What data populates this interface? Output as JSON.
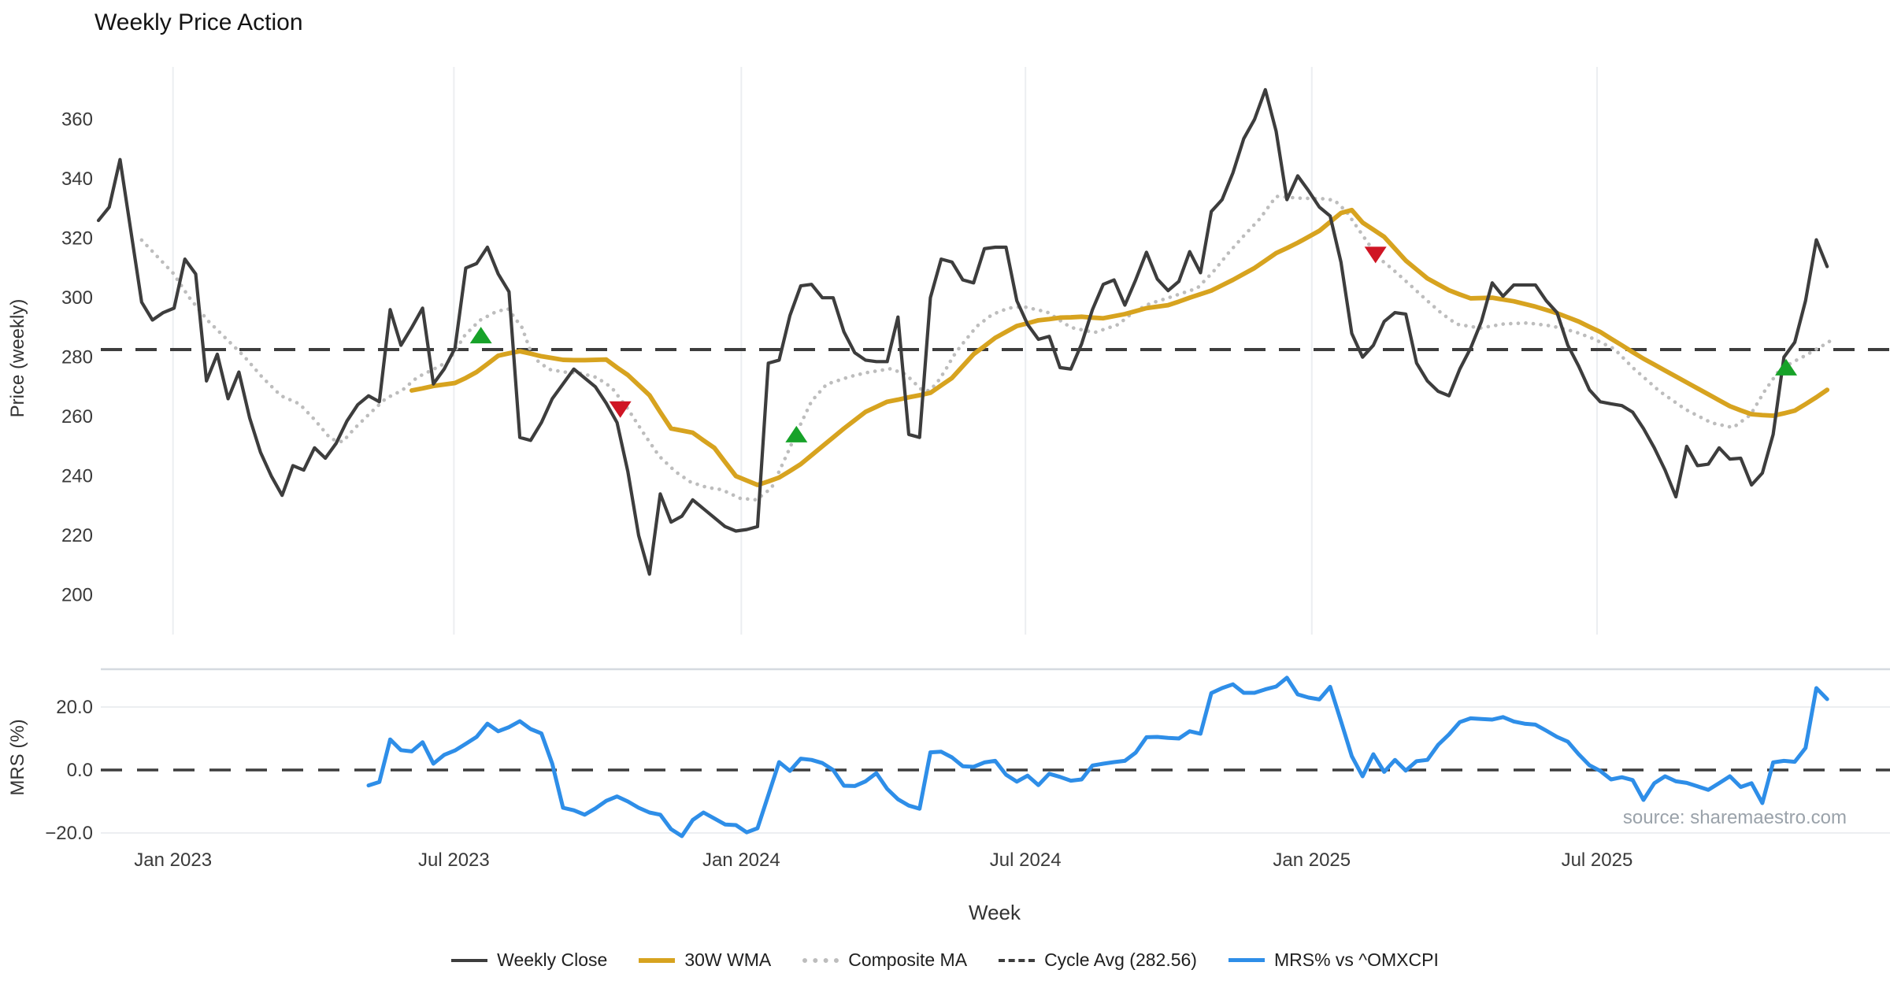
{
  "title": "Weekly Price Action",
  "watermark": "source: sharemaestro.com",
  "colors": {
    "close": "#3d3d3d",
    "wma": "#d7a31f",
    "composite": "#bdbdbd",
    "cycle_dash": "#3d3d3d",
    "mrs": "#2e8ee8",
    "buy": "#17a229",
    "sell": "#cf1524",
    "gridline": "#eceef1",
    "panel_border": "#d5dae0"
  },
  "legend": [
    {
      "label": "Weekly Close",
      "swatch": "sw-solid-dark"
    },
    {
      "label": "30W WMA",
      "swatch": "sw-solid-gold"
    },
    {
      "label": "Composite MA",
      "swatch": "sw-dotted"
    },
    {
      "label": "Cycle Avg (282.56)",
      "swatch": "sw-dashed"
    },
    {
      "label": "MRS% vs ^OMXCPI",
      "swatch": "sw-solid-blue"
    }
  ],
  "chart_data": {
    "type": "line",
    "x": {
      "label": "Week",
      "tick_labels": [
        "Jan 2023",
        "Jul 2023",
        "Jan 2024",
        "Jul 2024",
        "Jan 2025",
        "Jul 2025"
      ],
      "tick_weeks": [
        6.9,
        32.9,
        59.5,
        85.8,
        112.3,
        138.7
      ]
    },
    "price_panel": {
      "ylabel": "Price (weekly)",
      "yticks": [
        200,
        220,
        240,
        260,
        280,
        300,
        320,
        340,
        360
      ],
      "ylim": [
        195,
        380
      ],
      "cycle_avg": 282.56,
      "grid": "vertical-only"
    },
    "mrs_panel": {
      "ylabel": "MRS (%)",
      "yticks": [
        -20.0,
        0.0,
        20.0
      ],
      "ytick_labels": [
        "−20.0",
        "0.0",
        "20.0"
      ],
      "zero_line": 0.0,
      "grid": "horizontal-only"
    },
    "weekly_close": {
      "name": "Weekly Close",
      "start_week": 0,
      "values": [
        326,
        330.5,
        346.5,
        322.5,
        298.5,
        292.5,
        295,
        296.5,
        313,
        308,
        272,
        281,
        266,
        275,
        259.5,
        248,
        240,
        233.5,
        243.5,
        242,
        249.5,
        246,
        251,
        258.5,
        264,
        267,
        265,
        296,
        284,
        290,
        296.5,
        271,
        276,
        283,
        310,
        311.5,
        317,
        308,
        302,
        253,
        252,
        258,
        266,
        271,
        276,
        273,
        270,
        264.5,
        258,
        241.5,
        220,
        207,
        234,
        224.5,
        226.5,
        232,
        229,
        226,
        223,
        221.5,
        222,
        223,
        278,
        279,
        294,
        304,
        304.5,
        300,
        300,
        288.5,
        281.5,
        279,
        278.5,
        278.5,
        293.5,
        254,
        253,
        300,
        313,
        312,
        306,
        305,
        316.5,
        317,
        317,
        299,
        291,
        286,
        287,
        276.5,
        276,
        284.5,
        296,
        304.5,
        306,
        297.5,
        306,
        315.3,
        306.3,
        302.4,
        305.5,
        315.5,
        308.4,
        329,
        333,
        342,
        353.5,
        360,
        370,
        356,
        333,
        341,
        336,
        330.5,
        327.5,
        312,
        288,
        280,
        284,
        292,
        295,
        294.5,
        278,
        272,
        268.5,
        267,
        276,
        283,
        292,
        305,
        300.5,
        304.3,
        304.3,
        304.3,
        299,
        295,
        284,
        277,
        269,
        265,
        264.3,
        263.7,
        261.5,
        256,
        249.5,
        242,
        233,
        250,
        243.5,
        244,
        249.5,
        245.7,
        246,
        237,
        241,
        254,
        280,
        285,
        299,
        319.5,
        310.5
      ]
    },
    "wma30": {
      "name": "30W WMA",
      "start_week": 29,
      "values": [
        268.8,
        269.5,
        270.3,
        270.8,
        271.3,
        273,
        275,
        277.7,
        280.5,
        281.3,
        282,
        281.2,
        280.3,
        279.7,
        279.1,
        279,
        279,
        279.1,
        279.2,
        276.5,
        274,
        270.6,
        267.2,
        261.5,
        256,
        255.3,
        254.6,
        252,
        249.5,
        244.7,
        240,
        238.5,
        237,
        238.2,
        239.5,
        241.7,
        244,
        247,
        250,
        253,
        256,
        258.8,
        261.6,
        263.3,
        265,
        265.7,
        266.5,
        267.2,
        268,
        270.5,
        273,
        277,
        281,
        283.7,
        286.5,
        288.5,
        290.5,
        291.4,
        292.4,
        292.8,
        293.3,
        293.4,
        293.6,
        293.3,
        293.1,
        293.8,
        294.5,
        295.5,
        296.5,
        297,
        297.5,
        298.7,
        300,
        301.2,
        302.4,
        304.2,
        306,
        308,
        310,
        312.5,
        315,
        316.7,
        318.5,
        320.5,
        322.5,
        325.5,
        328.5,
        329.5,
        325.3,
        322.9,
        320.5,
        316.5,
        312.5,
        309.5,
        306.5,
        304.5,
        302.5,
        301.1,
        299.8,
        299.9,
        300,
        299.4,
        298.8,
        297.9,
        297,
        295.9,
        294.8,
        293.4,
        292,
        290.2,
        288.5,
        286.2,
        284,
        281.7,
        279.5,
        277.5,
        275.5,
        273.5,
        271.5,
        269.5,
        267.5,
        265.5,
        263.5,
        262.1,
        260.8,
        260.5,
        260.3,
        261.1,
        262,
        264.2,
        266.5,
        269
      ]
    },
    "composite_ma": {
      "name": "Composite MA",
      "points": [
        [
          4.0,
          319.4
        ],
        [
          6.9,
          308.3
        ],
        [
          8.4,
          300.1
        ],
        [
          10.1,
          292.4
        ],
        [
          11.8,
          286.3
        ],
        [
          13.5,
          280.2
        ],
        [
          15.2,
          273.1
        ],
        [
          16.9,
          267
        ],
        [
          18.6,
          264.3
        ],
        [
          20.0,
          259
        ],
        [
          21.5,
          252.5
        ],
        [
          22.6,
          251.5
        ],
        [
          23.7,
          256
        ],
        [
          25.1,
          261
        ],
        [
          26.6,
          266.1
        ],
        [
          28.1,
          268.8
        ],
        [
          29.5,
          273.2
        ],
        [
          31.0,
          275.9
        ],
        [
          32.4,
          278.6
        ],
        [
          33.9,
          287.3
        ],
        [
          35.3,
          292.4
        ],
        [
          36.8,
          295.3
        ],
        [
          37.9,
          296.3
        ],
        [
          39.2,
          290
        ],
        [
          39.9,
          283
        ],
        [
          40.7,
          278.6
        ],
        [
          41.7,
          275.9
        ],
        [
          43.1,
          275
        ],
        [
          44.6,
          274.6
        ],
        [
          46.1,
          273.2
        ],
        [
          47.5,
          269.8
        ],
        [
          49.0,
          262.6
        ],
        [
          50.4,
          254.7
        ],
        [
          51.9,
          246.7
        ],
        [
          53.4,
          241.5
        ],
        [
          54.8,
          238
        ],
        [
          56.3,
          236.2
        ],
        [
          57.7,
          235.4
        ],
        [
          59.4,
          232.5
        ],
        [
          60.9,
          232
        ],
        [
          62.3,
          236
        ],
        [
          63.8,
          247.9
        ],
        [
          64.5,
          253.7
        ],
        [
          66.0,
          265.2
        ],
        [
          67.4,
          270.9
        ],
        [
          69.6,
          273.5
        ],
        [
          71.1,
          274.8
        ],
        [
          73.3,
          276.1
        ],
        [
          74.7,
          274.3
        ],
        [
          76.2,
          269
        ],
        [
          76.9,
          268.7
        ],
        [
          77.6,
          271.3
        ],
        [
          78.4,
          275.7
        ],
        [
          79.1,
          280.2
        ],
        [
          79.8,
          283.7
        ],
        [
          81.3,
          290.4
        ],
        [
          82.7,
          294.3
        ],
        [
          84.2,
          296.5
        ],
        [
          85.6,
          297
        ],
        [
          87.8,
          295.2
        ],
        [
          90.0,
          290
        ],
        [
          92.2,
          288.3
        ],
        [
          94.4,
          291
        ],
        [
          95.8,
          295.2
        ],
        [
          97.3,
          298
        ],
        [
          98.8,
          299.7
        ],
        [
          100.2,
          301.4
        ],
        [
          101.7,
          303.2
        ],
        [
          103.1,
          308.4
        ],
        [
          104.6,
          315.1
        ],
        [
          106.0,
          320.8
        ],
        [
          107.5,
          326.6
        ],
        [
          109.0,
          334.1
        ],
        [
          111.2,
          333.5
        ],
        [
          113.3,
          333.3
        ],
        [
          114.4,
          332.8
        ],
        [
          115.5,
          329
        ],
        [
          116.8,
          322.1
        ],
        [
          117.7,
          317.4
        ],
        [
          118.4,
          313.7
        ],
        [
          119.9,
          309.2
        ],
        [
          121.4,
          304.3
        ],
        [
          122.8,
          299.6
        ],
        [
          124.3,
          294.8
        ],
        [
          125.7,
          291.1
        ],
        [
          127.9,
          289.8
        ],
        [
          130.1,
          291.2
        ],
        [
          132.3,
          291.5
        ],
        [
          134.5,
          290.5
        ],
        [
          136.7,
          288.5
        ],
        [
          138.3,
          286.3
        ],
        [
          140.3,
          282.8
        ],
        [
          142.0,
          276.5
        ],
        [
          144.5,
          268.5
        ],
        [
          146.9,
          262.4
        ],
        [
          149.3,
          257.9
        ],
        [
          151.3,
          256.3
        ],
        [
          152.9,
          260.6
        ],
        [
          154.2,
          268.5
        ],
        [
          155.4,
          274.8
        ],
        [
          156.6,
          277.9
        ],
        [
          157.8,
          280.2
        ],
        [
          159.5,
          283.7
        ],
        [
          160.3,
          285.5
        ]
      ]
    },
    "mrs": {
      "name": "MRS% vs ^OMXCPI",
      "start_week": 25,
      "values": [
        -4.9,
        -3.8,
        9.7,
        6.3,
        5.9,
        8.8,
        2.0,
        4.8,
        6.2,
        8.3,
        10.5,
        14.7,
        12.3,
        13.6,
        15.5,
        13.0,
        11.6,
        2.0,
        -12.0,
        -12.8,
        -14.2,
        -12.2,
        -9.8,
        -8.4,
        -10.0,
        -12.0,
        -13.5,
        -14.2,
        -18.8,
        -21.0,
        -15.9,
        -13.5,
        -15.4,
        -17.3,
        -17.5,
        -19.8,
        -18.5,
        -8.0,
        2.5,
        -0.3,
        3.6,
        3.2,
        2.2,
        0.0,
        -5.0,
        -5.1,
        -3.6,
        -1.0,
        -6.0,
        -9.3,
        -11.3,
        -12.3,
        5.6,
        5.8,
        4.0,
        1.2,
        1.0,
        2.4,
        2.9,
        -1.5,
        -3.7,
        -1.8,
        -4.8,
        -1.2,
        -2.2,
        -3.4,
        -3.0,
        1.4,
        2.0,
        2.5,
        2.9,
        5.5,
        10.4,
        10.5,
        10.2,
        10.0,
        12.3,
        11.5,
        24.4,
        26.0,
        27.2,
        24.5,
        24.5,
        25.6,
        26.5,
        29.3,
        24.0,
        23.0,
        22.4,
        26.4,
        15.5,
        4.4,
        -2.0,
        5.0,
        -0.6,
        3.2,
        -0.2,
        2.8,
        3.2,
        8.0,
        11.3,
        15.2,
        16.4,
        16.2,
        16.0,
        16.8,
        15.4,
        14.7,
        14.4,
        12.5,
        10.5,
        9.0,
        5.0,
        1.5,
        -0.3,
        -3.0,
        -2.3,
        -3.2,
        -9.5,
        -4.2,
        -2.0,
        -3.6,
        -4.1,
        -5.2,
        -6.3,
        -4.2,
        -2.0,
        -5.4,
        -4.2,
        -10.5,
        2.4,
        2.9,
        2.6,
        7.0,
        26.0,
        22.5
      ]
    },
    "buy_signals": [
      [
        35.4,
        287.3
      ],
      [
        64.6,
        254.0
      ],
      [
        156.2,
        276.5
      ]
    ],
    "sell_signals": [
      [
        48.3,
        262.5
      ],
      [
        118.2,
        314.5
      ]
    ]
  }
}
